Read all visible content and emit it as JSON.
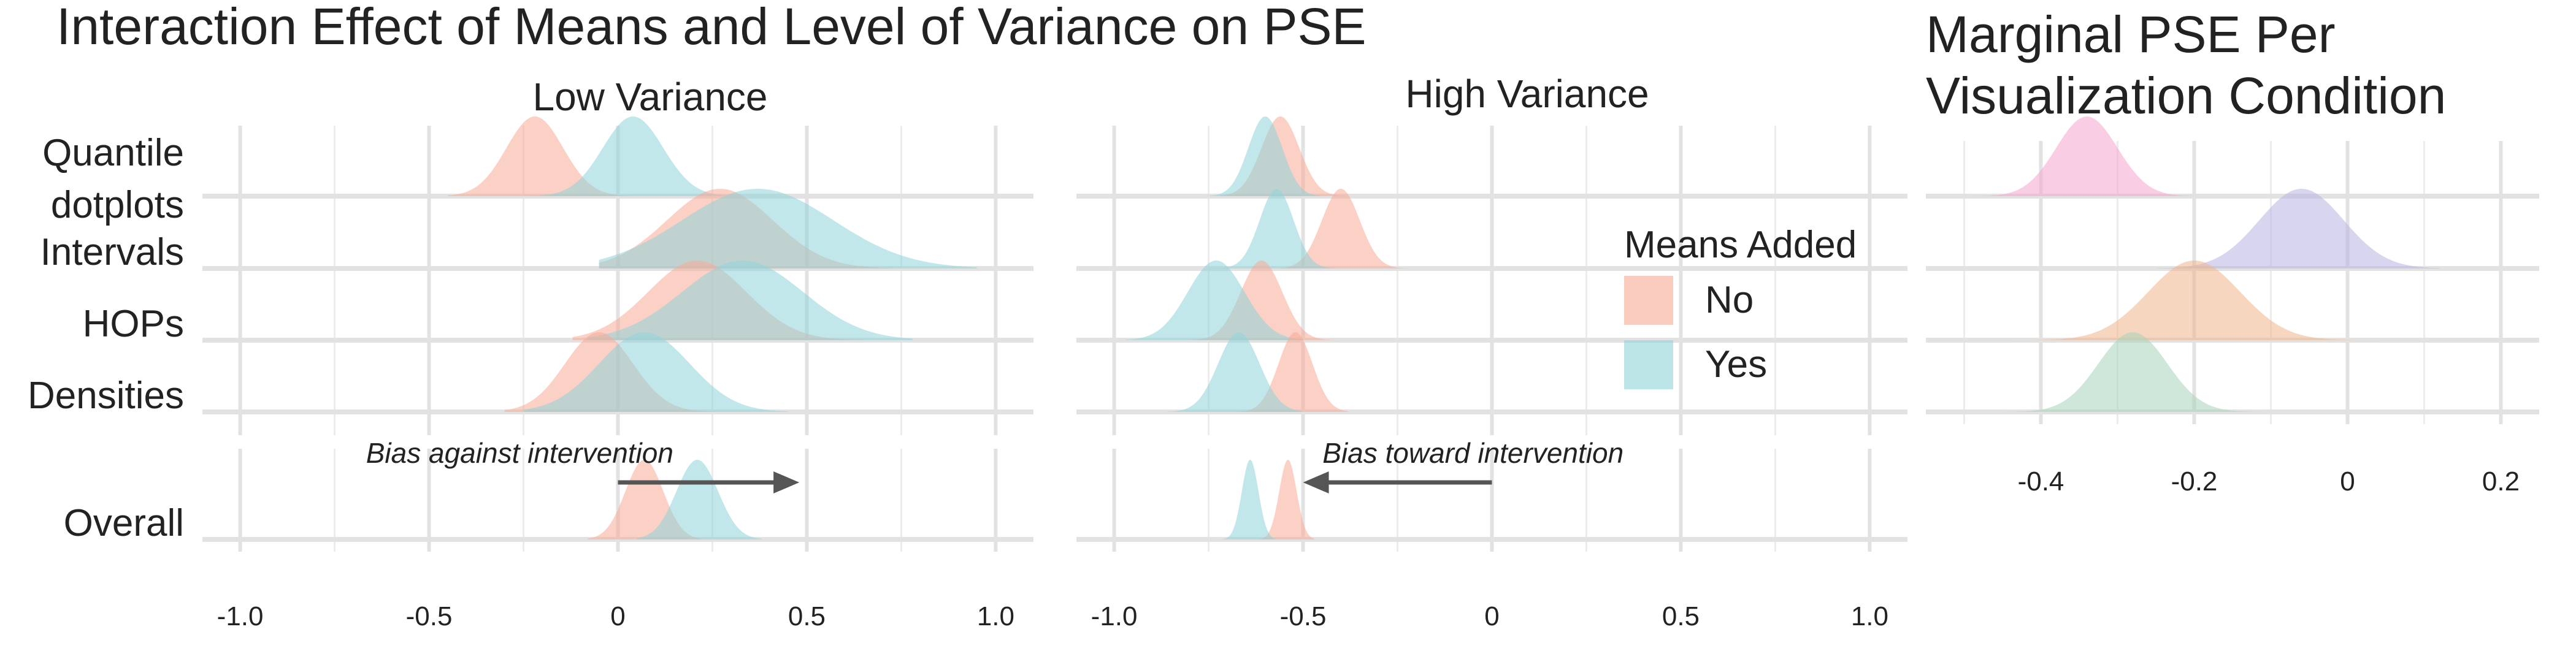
{
  "main_title": "Interaction Effect of Means and Level of Variance on PSE",
  "chart_data": [
    {
      "type": "ridgeline",
      "title": "Low Variance",
      "x_range": [
        -1.1,
        1.1
      ],
      "x_ticks": [
        "-1.0",
        "-0.5",
        "0",
        "0.5",
        "1.0"
      ],
      "grid": true,
      "rows": [
        {
          "label": "Quantile\ndotplots",
          "series": [
            {
              "name": "No",
              "center": -0.22,
              "spread": 0.075,
              "extent": [
                -0.45,
                0.12
              ]
            },
            {
              "name": "Yes",
              "center": 0.04,
              "spread": 0.08,
              "extent": [
                -0.25,
                0.38
              ]
            }
          ]
        },
        {
          "label": "Intervals",
          "series": [
            {
              "name": "No",
              "center": 0.27,
              "spread": 0.14,
              "extent": [
                -0.05,
                0.72
              ]
            },
            {
              "name": "Yes",
              "center": 0.37,
              "spread": 0.2,
              "extent": [
                -0.05,
                0.95
              ]
            }
          ]
        },
        {
          "label": "HOPs",
          "series": [
            {
              "name": "No",
              "center": 0.21,
              "spread": 0.13,
              "extent": [
                -0.12,
                0.65
              ]
            },
            {
              "name": "Yes",
              "center": 0.33,
              "spread": 0.16,
              "extent": [
                -0.08,
                0.78
              ]
            }
          ]
        },
        {
          "label": "Densities",
          "series": [
            {
              "name": "No",
              "center": -0.05,
              "spread": 0.09,
              "extent": [
                -0.3,
                0.28
              ]
            },
            {
              "name": "Yes",
              "center": 0.07,
              "spread": 0.12,
              "extent": [
                -0.25,
                0.45
              ]
            }
          ]
        },
        {
          "label": "Overall",
          "series": [
            {
              "name": "No",
              "center": 0.07,
              "spread": 0.05,
              "extent": [
                -0.08,
                0.22
              ]
            },
            {
              "name": "Yes",
              "center": 0.21,
              "spread": 0.055,
              "extent": [
                0.05,
                0.38
              ]
            }
          ]
        }
      ],
      "annotation": {
        "text": "Bias against intervention",
        "arrow_from": 0.0,
        "arrow_to": 0.48
      }
    },
    {
      "type": "ridgeline",
      "title": "High Variance",
      "x_range": [
        -1.1,
        1.1
      ],
      "x_ticks": [
        "-1.0",
        "-0.5",
        "0",
        "0.5",
        "1.0"
      ],
      "grid": true,
      "rows": [
        {
          "label": "Quantile\ndotplots",
          "series": [
            {
              "name": "No",
              "center": -0.56,
              "spread": 0.05,
              "extent": [
                -0.72,
                -0.38
              ]
            },
            {
              "name": "Yes",
              "center": -0.6,
              "spread": 0.045,
              "extent": [
                -0.76,
                -0.45
              ]
            }
          ]
        },
        {
          "label": "Intervals",
          "series": [
            {
              "name": "No",
              "center": -0.4,
              "spread": 0.05,
              "extent": [
                -0.56,
                -0.22
              ]
            },
            {
              "name": "Yes",
              "center": -0.57,
              "spread": 0.045,
              "extent": [
                -0.72,
                -0.42
              ]
            }
          ]
        },
        {
          "label": "HOPs",
          "series": [
            {
              "name": "No",
              "center": -0.61,
              "spread": 0.055,
              "extent": [
                -0.8,
                -0.4
              ]
            },
            {
              "name": "Yes",
              "center": -0.73,
              "spread": 0.075,
              "extent": [
                -0.97,
                -0.5
              ]
            }
          ]
        },
        {
          "label": "Densities",
          "series": [
            {
              "name": "No",
              "center": -0.52,
              "spread": 0.045,
              "extent": [
                -0.68,
                -0.38
              ]
            },
            {
              "name": "Yes",
              "center": -0.67,
              "spread": 0.055,
              "extent": [
                -0.86,
                -0.5
              ]
            }
          ]
        },
        {
          "label": "Overall",
          "series": [
            {
              "name": "No",
              "center": -0.54,
              "spread": 0.023,
              "extent": [
                -0.62,
                -0.47
              ]
            },
            {
              "name": "Yes",
              "center": -0.64,
              "spread": 0.022,
              "extent": [
                -0.72,
                -0.57
              ]
            }
          ]
        }
      ],
      "annotation": {
        "text": "Bias toward intervention",
        "arrow_from": 0.0,
        "arrow_to": -0.5
      }
    },
    {
      "type": "ridgeline",
      "title": "Marginal PSE Per\nVisualization Condition",
      "x_range": [
        -0.55,
        0.25
      ],
      "x_ticks": [
        "-0.4",
        "-0.2",
        "0",
        "0.2"
      ],
      "grid": true,
      "rows": [
        {
          "label": "Quantile dotplots",
          "series": [
            {
              "name": "Quantile dotplots",
              "center": -0.34,
              "spread": 0.04,
              "extent": [
                -0.55,
                -0.2
              ],
              "color": "#f4a6ce"
            }
          ]
        },
        {
          "label": "Intervals",
          "series": [
            {
              "name": "Intervals",
              "center": -0.06,
              "spread": 0.055,
              "extent": [
                -0.25,
                0.12
              ],
              "color": "#b8b3e0"
            }
          ]
        },
        {
          "label": "HOPs",
          "series": [
            {
              "name": "HOPs",
              "center": -0.2,
              "spread": 0.06,
              "extent": [
                -0.5,
                0.1
              ],
              "color": "#f0b58c"
            }
          ]
        },
        {
          "label": "Densities",
          "series": [
            {
              "name": "Densities",
              "center": -0.28,
              "spread": 0.045,
              "extent": [
                -0.45,
                -0.1
              ],
              "color": "#a6d4b8"
            }
          ]
        }
      ]
    }
  ],
  "legend": {
    "title": "Means Added",
    "items": [
      {
        "label": "No",
        "color": "#f7a995"
      },
      {
        "label": "Yes",
        "color": "#8fd3d8"
      }
    ]
  }
}
